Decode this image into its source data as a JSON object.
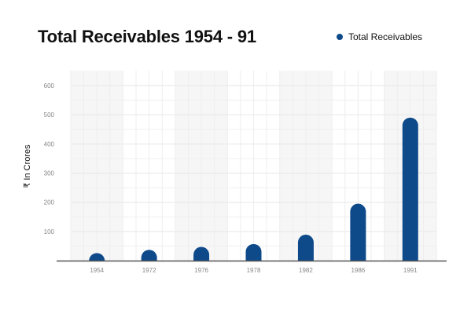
{
  "chart_data": {
    "type": "bar",
    "title": "Total Receivables 1954 - 91",
    "xlabel": "",
    "ylabel": "₹ In Crores",
    "categories": [
      "1954",
      "1972",
      "1976",
      "1978",
      "1982",
      "1986",
      "1991"
    ],
    "series": [
      {
        "name": "Total Receivables",
        "values": [
          26,
          37,
          47,
          57,
          89,
          195,
          490
        ],
        "color": "#0e4a8a"
      }
    ],
    "ylim": [
      0,
      600
    ],
    "yticks": [
      100,
      200,
      300,
      400,
      500,
      600
    ],
    "grid": true,
    "legend_position": "top-right"
  }
}
